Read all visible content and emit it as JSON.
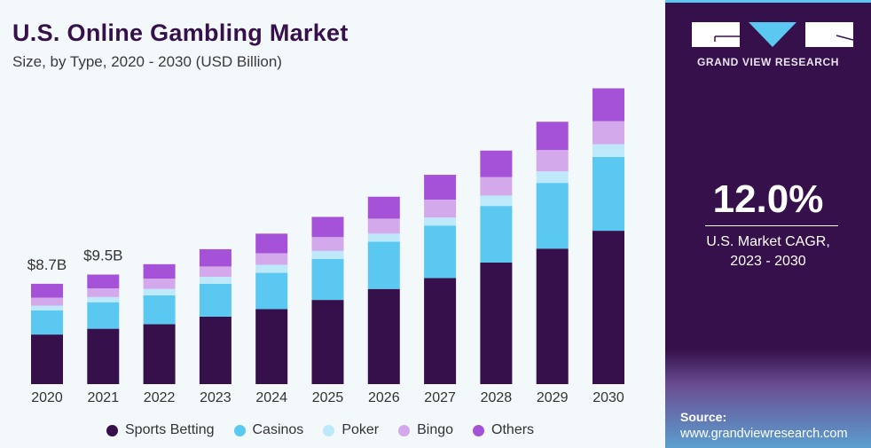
{
  "title": "U.S. Online Gambling Market",
  "subtitle": "Size, by Type, 2020 - 2030 (USD Billion)",
  "brand": "GRAND VIEW RESEARCH",
  "cagr": {
    "value": "12.0%",
    "label_line1": "U.S. Market CAGR,",
    "label_line2": "2023 - 2030"
  },
  "source": {
    "label": "Source:",
    "url": "www.grandviewresearch.com"
  },
  "colors": {
    "panel": "#36104a",
    "accent": "#5bc8f2"
  },
  "chart_data": {
    "type": "bar",
    "stacked": true,
    "title": "U.S. Online Gambling Market",
    "subtitle": "Size, by Type, 2020 - 2030 (USD Billion)",
    "categories": [
      "2020",
      "2021",
      "2022",
      "2023",
      "2024",
      "2025",
      "2026",
      "2027",
      "2028",
      "2029",
      "2030"
    ],
    "series": [
      {
        "name": "Sports Betting",
        "color": "#36104a",
        "values": [
          4.3,
          4.8,
          5.2,
          5.85,
          6.5,
          7.3,
          8.25,
          9.2,
          10.55,
          11.75,
          13.3
        ]
      },
      {
        "name": "Casinos",
        "color": "#5bc8f2",
        "values": [
          2.1,
          2.3,
          2.5,
          2.85,
          3.15,
          3.55,
          4.1,
          4.55,
          4.9,
          5.7,
          6.4
        ]
      },
      {
        "name": "Poker",
        "color": "#bde9fa",
        "values": [
          0.4,
          0.45,
          0.55,
          0.6,
          0.7,
          0.7,
          0.7,
          0.7,
          0.9,
          1.0,
          1.1
        ]
      },
      {
        "name": "Bingo",
        "color": "#d4a9ec",
        "values": [
          0.7,
          0.75,
          0.9,
          0.9,
          1.0,
          1.2,
          1.3,
          1.55,
          1.6,
          1.85,
          2.0
        ]
      },
      {
        "name": "Others",
        "color": "#a652d8",
        "values": [
          1.2,
          1.2,
          1.25,
          1.5,
          1.7,
          1.75,
          1.9,
          2.15,
          2.3,
          2.45,
          2.85
        ]
      }
    ],
    "data_labels": [
      {
        "category": "2020",
        "text": "$8.7B"
      },
      {
        "category": "2021",
        "text": "$9.5B"
      }
    ],
    "legend": "bottom",
    "grid": false,
    "y_axis_visible": false
  }
}
